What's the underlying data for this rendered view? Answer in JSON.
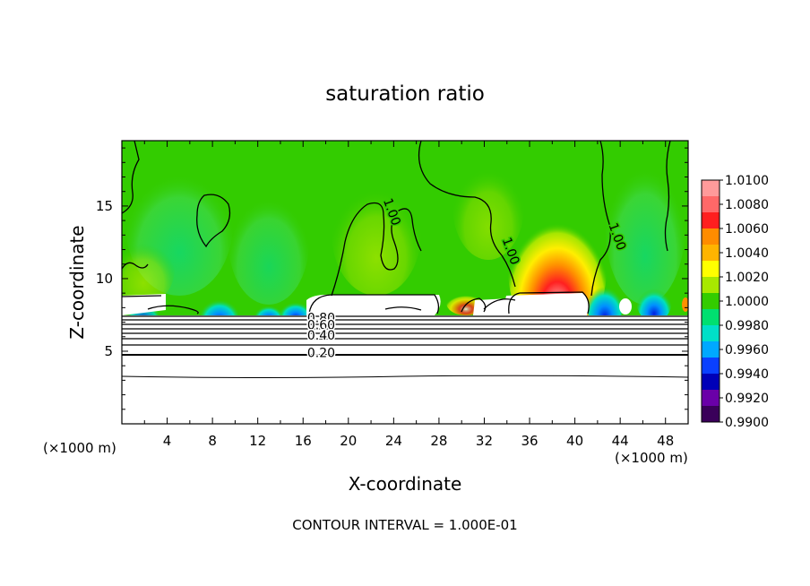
{
  "chart_data": {
    "type": "heatmap",
    "title": "saturation ratio",
    "xlabel": "X-coordinate",
    "ylabel": "Z-coordinate",
    "x_unit_left": "(×1000 m)",
    "x_unit_right": "(×1000 m)",
    "footer": "CONTOUR INTERVAL = 1.000E-01",
    "xlim": [
      0,
      50
    ],
    "ylim": [
      0,
      19.5
    ],
    "x_ticks": [
      4,
      8,
      12,
      16,
      20,
      24,
      28,
      32,
      36,
      40,
      44,
      48
    ],
    "y_ticks": [
      5,
      10,
      15
    ],
    "colorbar": {
      "min": 0.99,
      "max": 1.01,
      "labels": [
        "1.0100",
        "1.0080",
        "1.0060",
        "1.0040",
        "1.0020",
        "1.0000",
        "0.9980",
        "0.9960",
        "0.9940",
        "0.9920",
        "0.9900"
      ],
      "colors": [
        "#ff9a9a",
        "#ff6868",
        "#ff1f1f",
        "#ff8c00",
        "#ffb400",
        "#ffff00",
        "#a8e800",
        "#33cc00",
        "#00e070",
        "#00e0c8",
        "#00a8ff",
        "#0a40ff",
        "#0000b8",
        "#6a00a8",
        "#3a005a"
      ]
    },
    "contour_labels": [
      {
        "text": "1.00",
        "x": 23.5,
        "y": 14.5
      },
      {
        "text": "1.00",
        "x": 34.0,
        "y": 11.8
      },
      {
        "text": "1.00",
        "x": 43.4,
        "y": 12.8
      },
      {
        "text": "0.80",
        "x": 17.6,
        "y": 7.0
      },
      {
        "text": "0.60",
        "x": 17.6,
        "y": 6.5
      },
      {
        "text": "0.40",
        "x": 17.6,
        "y": 5.8
      },
      {
        "text": "0.20",
        "x": 17.6,
        "y": 4.6
      }
    ]
  }
}
